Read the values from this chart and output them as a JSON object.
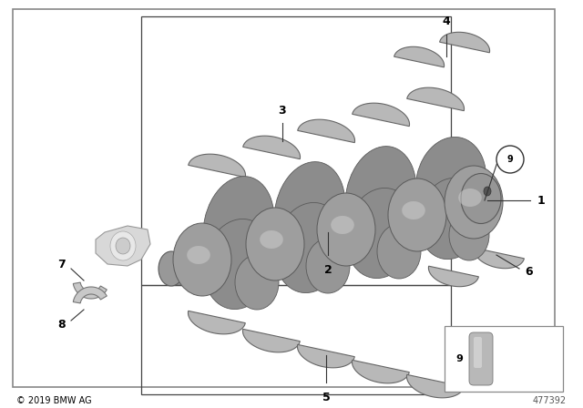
{
  "background_color": "#ffffff",
  "text_color": "#000000",
  "copyright": "© 2019 BMW AG",
  "part_number": "477392",
  "shell_color": "#b8b8b8",
  "shell_edge": "#666666",
  "crank_body": "#909090",
  "crank_dark": "#606060",
  "crank_highlight": "#c8c8c8",
  "rod_color": "#d0d0d0",
  "line_color": "#333333",
  "box_edge": "#888888",
  "inner_box_edge": "#444444"
}
